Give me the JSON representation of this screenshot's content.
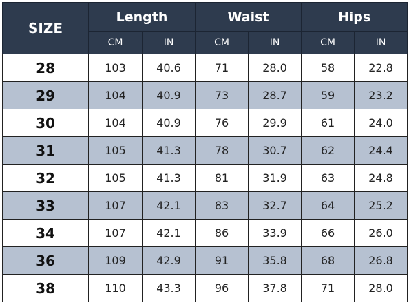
{
  "table": {
    "header": {
      "size": "SIZE",
      "groups": [
        "Length",
        "Waist",
        "Hips"
      ],
      "units": [
        "CM",
        "IN",
        "CM",
        "IN",
        "CM",
        "IN"
      ]
    },
    "rows": [
      [
        "28",
        "103",
        "40.6",
        "71",
        "28.0",
        "58",
        "22.8"
      ],
      [
        "29",
        "104",
        "40.9",
        "73",
        "28.7",
        "59",
        "23.2"
      ],
      [
        "30",
        "104",
        "40.9",
        "76",
        "29.9",
        "61",
        "24.0"
      ],
      [
        "31",
        "105",
        "41.3",
        "78",
        "30.7",
        "62",
        "24.4"
      ],
      [
        "32",
        "105",
        "41.3",
        "81",
        "31.9",
        "63",
        "24.8"
      ],
      [
        "33",
        "107",
        "42.1",
        "83",
        "32.7",
        "64",
        "25.2"
      ],
      [
        "34",
        "107",
        "42.1",
        "86",
        "33.9",
        "66",
        "26.0"
      ],
      [
        "36",
        "109",
        "42.9",
        "91",
        "35.8",
        "68",
        "26.8"
      ],
      [
        "38",
        "110",
        "43.3",
        "96",
        "37.8",
        "71",
        "28.0"
      ]
    ]
  }
}
